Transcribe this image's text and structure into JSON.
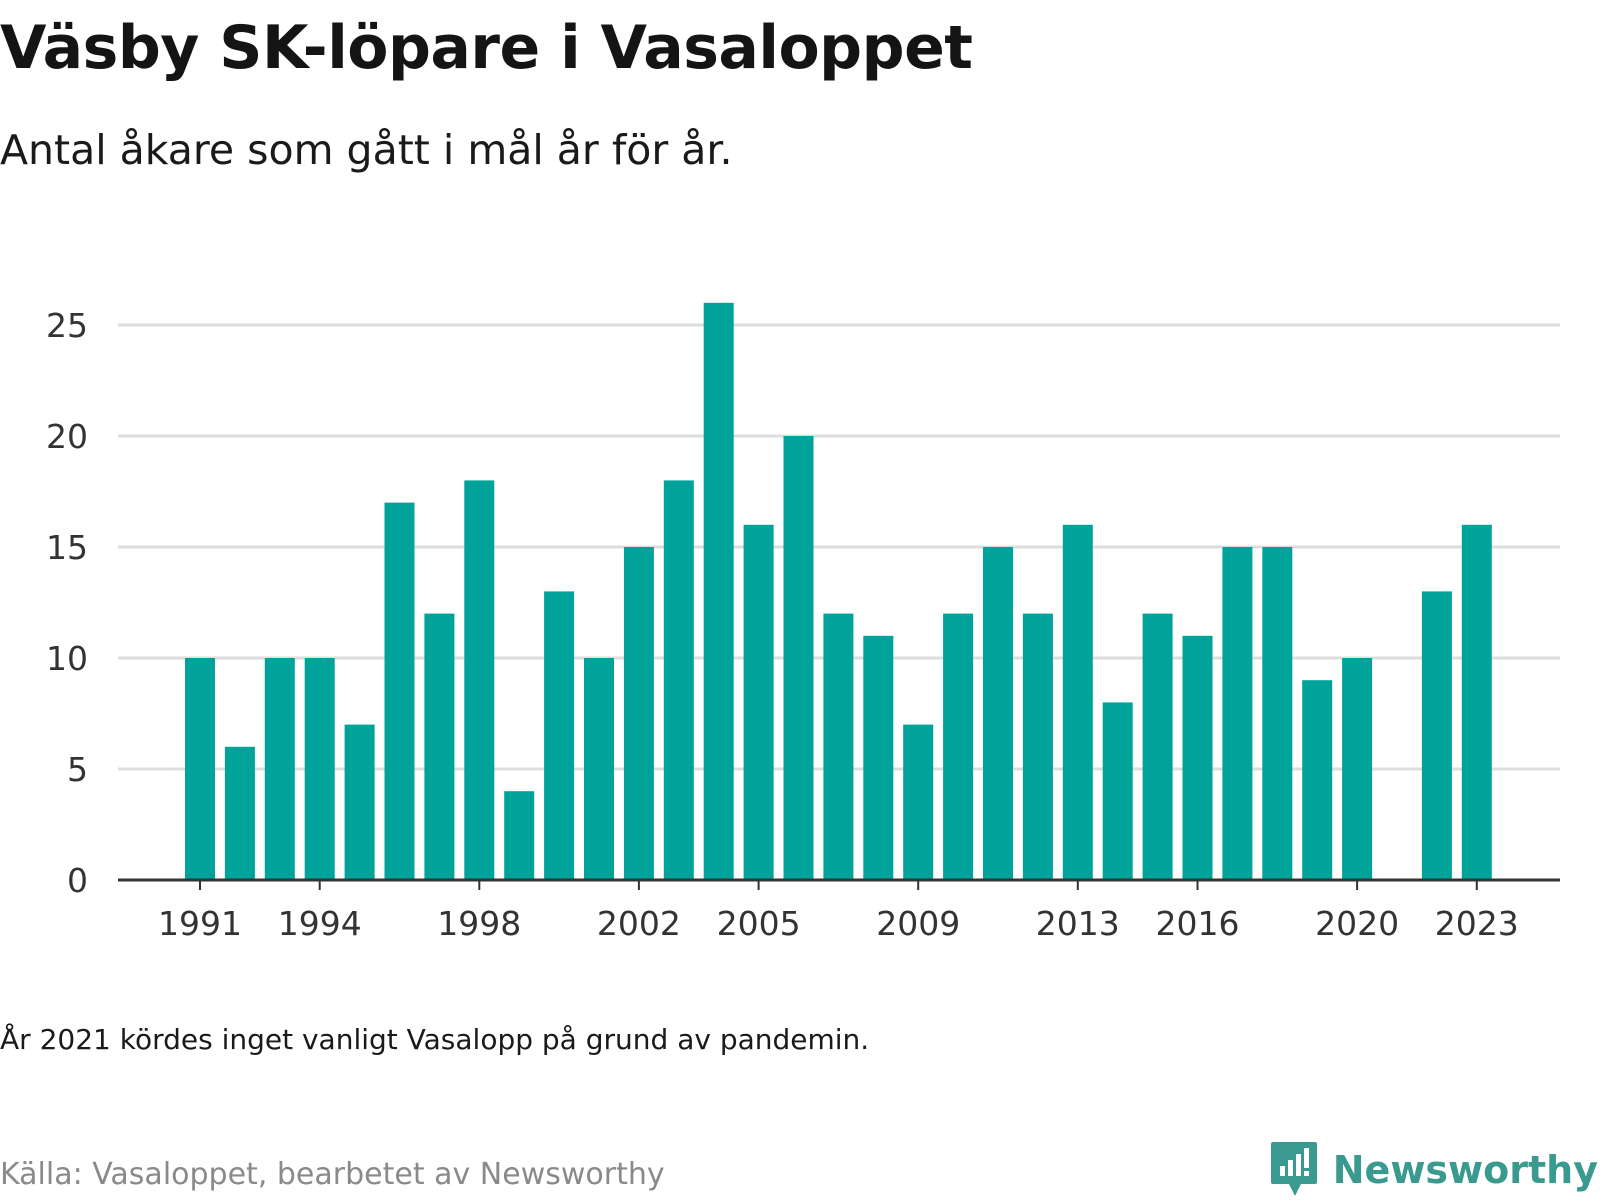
{
  "header": {
    "title": "Väsby SK-löpare i Vasaloppet",
    "subtitle": "Antal åkare som gått i mål år för år."
  },
  "footer": {
    "note": "År 2021 kördes inget vanligt Vasalopp på grund av pandemin.",
    "source": "Källa: Vasaloppet, bearbetet av Newsworthy",
    "brand": "Newsworthy"
  },
  "colors": {
    "bar": "#00a39a",
    "grid": "#dddddd",
    "axis": "#333333",
    "brand": "#3a9a8f"
  },
  "chart_data": {
    "type": "bar",
    "title": "Väsby SK-löpare i Vasaloppet",
    "subtitle": "Antal åkare som gått i mål år för år.",
    "xlabel": "",
    "ylabel": "",
    "x": [
      1991,
      1992,
      1993,
      1994,
      1995,
      1996,
      1997,
      1998,
      1999,
      2000,
      2001,
      2002,
      2003,
      2004,
      2005,
      2006,
      2007,
      2008,
      2009,
      2010,
      2011,
      2012,
      2013,
      2014,
      2015,
      2016,
      2017,
      2018,
      2019,
      2020,
      2021,
      2022,
      2023
    ],
    "values": [
      10,
      6,
      10,
      10,
      7,
      17,
      12,
      18,
      4,
      13,
      10,
      15,
      18,
      26,
      16,
      20,
      12,
      11,
      7,
      12,
      15,
      12,
      16,
      8,
      12,
      11,
      15,
      15,
      9,
      10,
      null,
      13,
      16
    ],
    "xticks": [
      1991,
      1994,
      1998,
      2002,
      2005,
      2009,
      2013,
      2016,
      2020,
      2023
    ],
    "yticks": [
      0,
      5,
      10,
      15,
      20,
      25
    ],
    "ylim": [
      0,
      26
    ],
    "grid": "horizontal",
    "legend": "none"
  }
}
